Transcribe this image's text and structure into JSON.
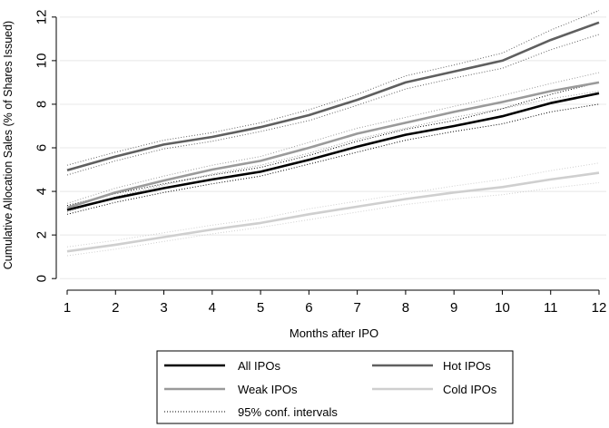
{
  "chart_data": {
    "type": "line",
    "xlabel": "Months after IPO",
    "ylabel": "Cumulative Allocation Sales (% of Shares Issued)",
    "x": [
      1,
      2,
      3,
      4,
      5,
      6,
      7,
      8,
      9,
      10,
      11,
      12
    ],
    "xlim": [
      0.85,
      12.15
    ],
    "ylim": [
      -0.2,
      12.7
    ],
    "xticks": [
      "1",
      "2",
      "3",
      "4",
      "5",
      "6",
      "7",
      "8",
      "9",
      "10",
      "11",
      "12"
    ],
    "yticks": [
      "0",
      "2",
      "4",
      "6",
      "8",
      "10",
      "12"
    ],
    "grid": "horizontal",
    "series": [
      {
        "name": "All IPOs",
        "color": "#000000",
        "values": [
          3.15,
          3.7,
          4.15,
          4.55,
          4.9,
          5.45,
          6.05,
          6.6,
          7.0,
          7.45,
          8.05,
          8.5
        ],
        "ci_low": [
          2.95,
          3.5,
          3.95,
          4.35,
          4.7,
          5.25,
          5.8,
          6.35,
          6.75,
          7.1,
          7.65,
          8.0
        ],
        "ci_high": [
          3.35,
          3.9,
          4.35,
          4.75,
          5.1,
          5.65,
          6.3,
          6.85,
          7.25,
          7.8,
          8.45,
          9.0
        ]
      },
      {
        "name": "Hot IPOs",
        "color": "#5f5f5f",
        "values": [
          4.97,
          5.6,
          6.15,
          6.5,
          6.95,
          7.5,
          8.2,
          9.0,
          9.5,
          10.0,
          10.95,
          11.75
        ],
        "ci_low": [
          4.75,
          5.4,
          5.95,
          6.3,
          6.75,
          7.25,
          7.95,
          8.7,
          9.2,
          9.65,
          10.5,
          11.2
        ],
        "ci_high": [
          5.2,
          5.8,
          6.35,
          6.7,
          7.15,
          7.75,
          8.45,
          9.3,
          9.8,
          10.35,
          11.4,
          12.3
        ]
      },
      {
        "name": "Weak IPOs",
        "color": "#9a9a9a",
        "values": [
          3.25,
          3.95,
          4.5,
          5.0,
          5.4,
          6.0,
          6.65,
          7.15,
          7.65,
          8.1,
          8.6,
          9.0
        ],
        "ci_low": [
          3.05,
          3.75,
          4.3,
          4.8,
          5.2,
          5.75,
          6.4,
          6.9,
          7.4,
          7.8,
          8.25,
          8.6
        ],
        "ci_high": [
          3.45,
          4.15,
          4.7,
          5.2,
          5.6,
          6.25,
          6.9,
          7.4,
          7.9,
          8.4,
          8.95,
          9.45
        ]
      },
      {
        "name": "Cold IPOs",
        "color": "#cfcfcf",
        "values": [
          1.25,
          1.55,
          1.9,
          2.25,
          2.55,
          2.95,
          3.3,
          3.65,
          3.95,
          4.2,
          4.55,
          4.85
        ],
        "ci_low": [
          1.05,
          1.35,
          1.7,
          2.05,
          2.35,
          2.7,
          3.05,
          3.4,
          3.65,
          3.85,
          4.15,
          4.4
        ],
        "ci_high": [
          1.45,
          1.75,
          2.1,
          2.45,
          2.75,
          3.2,
          3.55,
          3.9,
          4.25,
          4.55,
          4.95,
          5.3
        ]
      }
    ],
    "ci_label": "95% conf. intervals",
    "legend_position": "bottom"
  }
}
